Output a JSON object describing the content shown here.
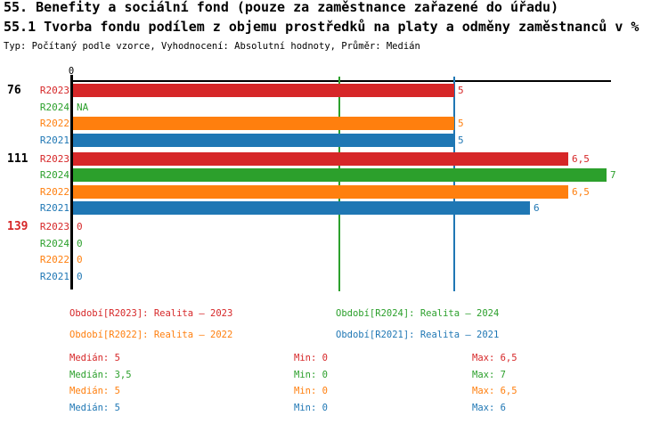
{
  "header": {
    "title": "55. Benefity a sociální fond (pouze za zaměstnance zařazené do úřadu)",
    "subtitle": "55.1 Tvorba fondu podílem z objemu prostředků na platy a odměny zaměstnanců v %",
    "meta": "Typ: Počítaný podle vzorce, Vyhodnocení: Absolutní hodnoty, Průměr: Medián"
  },
  "colors": {
    "R2023": "#d62728",
    "R2024": "#2ca02c",
    "R2022": "#ff7f0e",
    "R2021": "#1f77b4",
    "axis": "#000000",
    "group_label_default": "#000000",
    "group_label_highlight": "#d62728"
  },
  "chart_data": {
    "type": "bar",
    "orientation": "horizontal",
    "title": "55.1 Tvorba fondu podílem z objemu prostředků na platy a odměny zaměstnanců v %",
    "xlabel": "",
    "ylabel": "",
    "xlim": [
      0,
      7
    ],
    "x_tick_labels": [
      "0"
    ],
    "grid": false,
    "series_order": [
      "R2023",
      "R2024",
      "R2022",
      "R2021"
    ],
    "groups": [
      {
        "label": "76",
        "highlight": false,
        "rows": [
          {
            "series": "R2023",
            "value": 5,
            "value_label": "5"
          },
          {
            "series": "R2024",
            "value": null,
            "value_label": "NA"
          },
          {
            "series": "R2022",
            "value": 5,
            "value_label": "5"
          },
          {
            "series": "R2021",
            "value": 5,
            "value_label": "5"
          }
        ]
      },
      {
        "label": "111",
        "highlight": false,
        "rows": [
          {
            "series": "R2023",
            "value": 6.5,
            "value_label": "6,5"
          },
          {
            "series": "R2024",
            "value": 7,
            "value_label": "7"
          },
          {
            "series": "R2022",
            "value": 6.5,
            "value_label": "6,5"
          },
          {
            "series": "R2021",
            "value": 6,
            "value_label": "6"
          }
        ]
      },
      {
        "label": "139",
        "highlight": true,
        "rows": [
          {
            "series": "R2023",
            "value": 0,
            "value_label": "0"
          },
          {
            "series": "R2024",
            "value": 0,
            "value_label": "0"
          },
          {
            "series": "R2022",
            "value": 0,
            "value_label": "0"
          },
          {
            "series": "R2021",
            "value": 0,
            "value_label": "0"
          }
        ]
      }
    ],
    "reference_lines": [
      {
        "series": "R2024",
        "value": 3.5,
        "color": "#2ca02c",
        "meaning": "median R2024"
      },
      {
        "series": "R2021",
        "value": 5,
        "color": "#1f77b4",
        "meaning": "median R2021"
      }
    ]
  },
  "legend": {
    "items": [
      {
        "series": "R2023",
        "text": "Období[R2023]: Realita – 2023",
        "color": "#d62728"
      },
      {
        "series": "R2024",
        "text": "Období[R2024]: Realita – 2024",
        "color": "#2ca02c"
      },
      {
        "series": "R2022",
        "text": "Období[R2022]: Realita – 2022",
        "color": "#ff7f0e"
      },
      {
        "series": "R2021",
        "text": "Období[R2021]: Realita – 2021",
        "color": "#1f77b4"
      }
    ]
  },
  "stats": {
    "rows": [
      {
        "series": "R2023",
        "median": "Medián: 5",
        "min": "Min: 0",
        "max": "Max: 6,5",
        "color": "#d62728"
      },
      {
        "series": "R2024",
        "median": "Medián: 3,5",
        "min": "Min: 0",
        "max": "Max: 7",
        "color": "#2ca02c"
      },
      {
        "series": "R2022",
        "median": "Medián: 5",
        "min": "Min: 0",
        "max": "Max: 6,5",
        "color": "#ff7f0e"
      },
      {
        "series": "R2021",
        "median": "Medián: 5",
        "min": "Min: 0",
        "max": "Max: 6",
        "color": "#1f77b4"
      }
    ]
  }
}
